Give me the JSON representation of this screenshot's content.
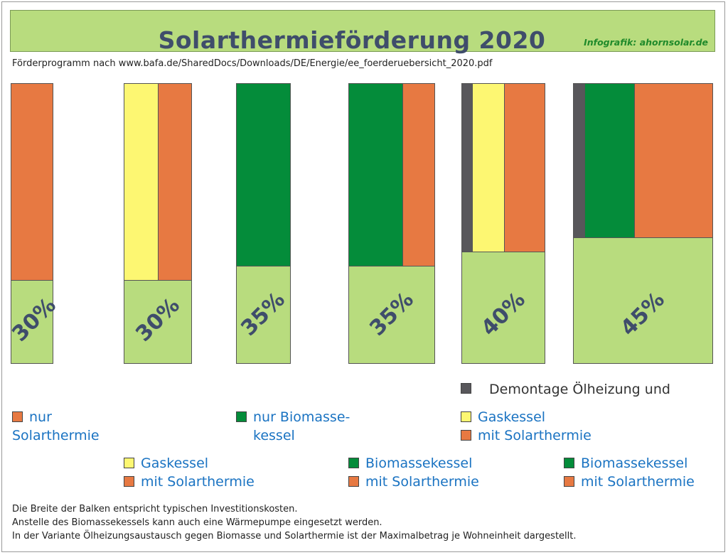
{
  "title": "Solarthermieförderung 2020",
  "credit": "Infografik: ahornsolar.de",
  "source": "Förderprogramm nach www.bafa.de/SharedDocs/Downloads/DE/Energie/ee_foerderuebersicht_2020.pdf",
  "colors": {
    "solarthermie": "#e77942",
    "gaskessel": "#fdf772",
    "biomassekessel": "#048c3a",
    "demontage": "#58575b",
    "foerderung": "#b8dc7e"
  },
  "chart_data": {
    "type": "bar",
    "categories": [
      "30%",
      "30%",
      "35%",
      "35%",
      "40%",
      "45%"
    ],
    "values": [
      30,
      30,
      35,
      35,
      40,
      45
    ],
    "bars": [
      {
        "label": "30%",
        "value": 30,
        "components": [
          "nur Solarthermie"
        ]
      },
      {
        "label": "30%",
        "value": 30,
        "components": [
          "Gaskessel",
          "mit Solarthermie"
        ]
      },
      {
        "label": "35%",
        "value": 35,
        "components": [
          "nur Biomassekessel"
        ]
      },
      {
        "label": "35%",
        "value": 35,
        "components": [
          "Biomassekessel",
          "mit Solarthermie"
        ]
      },
      {
        "label": "40%",
        "value": 40,
        "components": [
          "Demontage Ölheizung",
          "Gaskessel",
          "mit Solarthermie"
        ]
      },
      {
        "label": "45%",
        "value": 45,
        "components": [
          "Demontage Ölheizung",
          "Biomassekessel",
          "mit Solarthermie"
        ]
      }
    ]
  },
  "legend": {
    "demontage": "Demontage Ölheizung und",
    "g1": [
      "nur",
      "Solarthermie"
    ],
    "g2": [
      "nur Biomasse-",
      "kessel"
    ],
    "g3": [
      "Gaskessel",
      "mit Solarthermie"
    ],
    "g4": [
      "Gaskessel",
      "mit Solarthermie"
    ],
    "g5": [
      "Biomassekessel",
      "mit Solarthermie"
    ],
    "g6": [
      "Biomassekessel",
      "mit Solarthermie"
    ]
  },
  "notes": [
    "Die Breite der Balken entspricht typischen Investitionskosten.",
    "Anstelle des Biomassekessels kann auch eine Wärmepumpe eingesetzt werden.",
    "In der Variante Ölheizungsaustausch gegen Biomasse und Solarthermie ist der Maximalbetrag je Wohneinheit dargestellt."
  ]
}
